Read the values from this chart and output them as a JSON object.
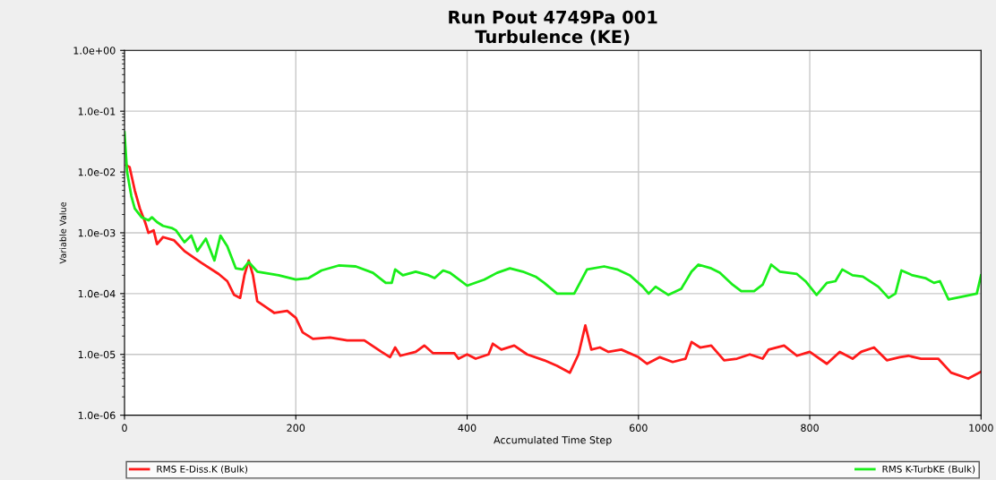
{
  "chart_data": {
    "type": "line",
    "title": "Run Pout 4749Pa 001\nTurbulence (KE)",
    "xlabel": "Accumulated Time Step",
    "ylabel": "Variable Value",
    "log": "y",
    "grid": true,
    "legend": "bottom",
    "marker": "none",
    "line_style": "solid",
    "xlim": [
      0,
      1000
    ],
    "xticks": [
      0,
      200,
      400,
      600,
      800,
      1000
    ],
    "ylim": [
      1e-06,
      1.0
    ],
    "yticks": [
      {
        "value": 1e-06,
        "label": "1.0e-06"
      },
      {
        "value": 1e-05,
        "label": "1.0e-05"
      },
      {
        "value": 0.0001,
        "label": "1.0e-04"
      },
      {
        "value": 0.001,
        "label": "1.0e-03"
      },
      {
        "value": 0.01,
        "label": "1.0e-02"
      },
      {
        "value": 0.1,
        "label": "1.0e-01"
      },
      {
        "value": 1.0,
        "label": "1.0e+00"
      }
    ],
    "series": [
      {
        "name": "RMS E-Diss.K (Bulk)",
        "color": "#ff1a1a",
        "x": [
          2,
          6,
          12,
          18,
          24,
          28,
          34,
          38,
          45,
          58,
          70,
          90,
          110,
          120,
          128,
          135,
          140,
          145,
          150,
          155,
          165,
          175,
          190,
          200,
          208,
          220,
          240,
          260,
          280,
          300,
          310,
          316,
          322,
          340,
          350,
          360,
          375,
          385,
          390,
          400,
          410,
          425,
          430,
          440,
          455,
          470,
          490,
          505,
          520,
          530,
          538,
          545,
          555,
          565,
          580,
          600,
          610,
          625,
          640,
          655,
          662,
          672,
          685,
          700,
          715,
          730,
          745,
          752,
          770,
          785,
          800,
          820,
          835,
          850,
          860,
          875,
          890,
          905,
          915,
          930,
          950,
          965,
          985,
          1000
        ],
        "values": [
          0.013,
          0.012,
          0.005,
          0.0025,
          0.0015,
          0.001,
          0.0011,
          0.00065,
          0.00085,
          0.00075,
          0.0005,
          0.00032,
          0.00021,
          0.00016,
          9.5e-05,
          8.5e-05,
          0.0002,
          0.00035,
          0.0002,
          7.5e-05,
          6e-05,
          4.8e-05,
          5.2e-05,
          4e-05,
          2.3e-05,
          1.8e-05,
          1.9e-05,
          1.7e-05,
          1.7e-05,
          1.1e-05,
          9e-06,
          1.3e-05,
          9.5e-06,
          1.1e-05,
          1.4e-05,
          1.05e-05,
          1.05e-05,
          1.05e-05,
          8.5e-06,
          1e-05,
          8.5e-06,
          1e-05,
          1.5e-05,
          1.2e-05,
          1.4e-05,
          1e-05,
          8e-06,
          6.5e-06,
          5e-06,
          1e-05,
          3e-05,
          1.2e-05,
          1.3e-05,
          1.1e-05,
          1.2e-05,
          9e-06,
          7e-06,
          9e-06,
          7.5e-06,
          8.5e-06,
          1.6e-05,
          1.3e-05,
          1.4e-05,
          8e-06,
          8.5e-06,
          1e-05,
          8.5e-06,
          1.2e-05,
          1.4e-05,
          9.5e-06,
          1.1e-05,
          7e-06,
          1.1e-05,
          8.5e-06,
          1.1e-05,
          1.3e-05,
          8e-06,
          9e-06,
          9.5e-06,
          8.5e-06,
          8.5e-06,
          5e-06,
          4e-06,
          5.2e-06
        ]
      },
      {
        "name": "RMS K-TurbKE (Bulk)",
        "color": "#1aee1a",
        "x": [
          0,
          3,
          8,
          12,
          20,
          28,
          32,
          38,
          45,
          55,
          60,
          70,
          78,
          85,
          95,
          105,
          112,
          120,
          130,
          138,
          145,
          155,
          180,
          200,
          215,
          230,
          250,
          270,
          290,
          305,
          312,
          316,
          325,
          340,
          355,
          362,
          372,
          380,
          400,
          420,
          435,
          450,
          465,
          480,
          490,
          505,
          525,
          540,
          560,
          575,
          590,
          605,
          612,
          620,
          635,
          650,
          662,
          670,
          685,
          695,
          710,
          720,
          735,
          745,
          755,
          765,
          785,
          795,
          808,
          820,
          830,
          838,
          850,
          862,
          880,
          892,
          900,
          907,
          920,
          935,
          945,
          952,
          962,
          980,
          995,
          1000
        ],
        "values": [
          0.045,
          0.01,
          0.004,
          0.0025,
          0.0018,
          0.0016,
          0.0018,
          0.0015,
          0.0013,
          0.0012,
          0.0011,
          0.0007,
          0.0009,
          0.0005,
          0.0008,
          0.00035,
          0.0009,
          0.0006,
          0.00026,
          0.00025,
          0.00033,
          0.00023,
          0.0002,
          0.00017,
          0.00018,
          0.00024,
          0.00029,
          0.00028,
          0.00022,
          0.00015,
          0.00015,
          0.00025,
          0.0002,
          0.00023,
          0.0002,
          0.00018,
          0.00024,
          0.00022,
          0.000135,
          0.00017,
          0.00022,
          0.00026,
          0.00023,
          0.00019,
          0.00015,
          0.0001,
          0.0001,
          0.00025,
          0.00028,
          0.00025,
          0.0002,
          0.00013,
          0.0001,
          0.00013,
          9.5e-05,
          0.00012,
          0.00023,
          0.0003,
          0.00026,
          0.00022,
          0.00014,
          0.00011,
          0.00011,
          0.00014,
          0.0003,
          0.00023,
          0.00021,
          0.00016,
          9.5e-05,
          0.00015,
          0.00016,
          0.00025,
          0.0002,
          0.00019,
          0.00013,
          8.5e-05,
          0.0001,
          0.00024,
          0.0002,
          0.00018,
          0.00015,
          0.00016,
          8e-05,
          9e-05,
          0.0001,
          0.0002
        ]
      }
    ]
  }
}
